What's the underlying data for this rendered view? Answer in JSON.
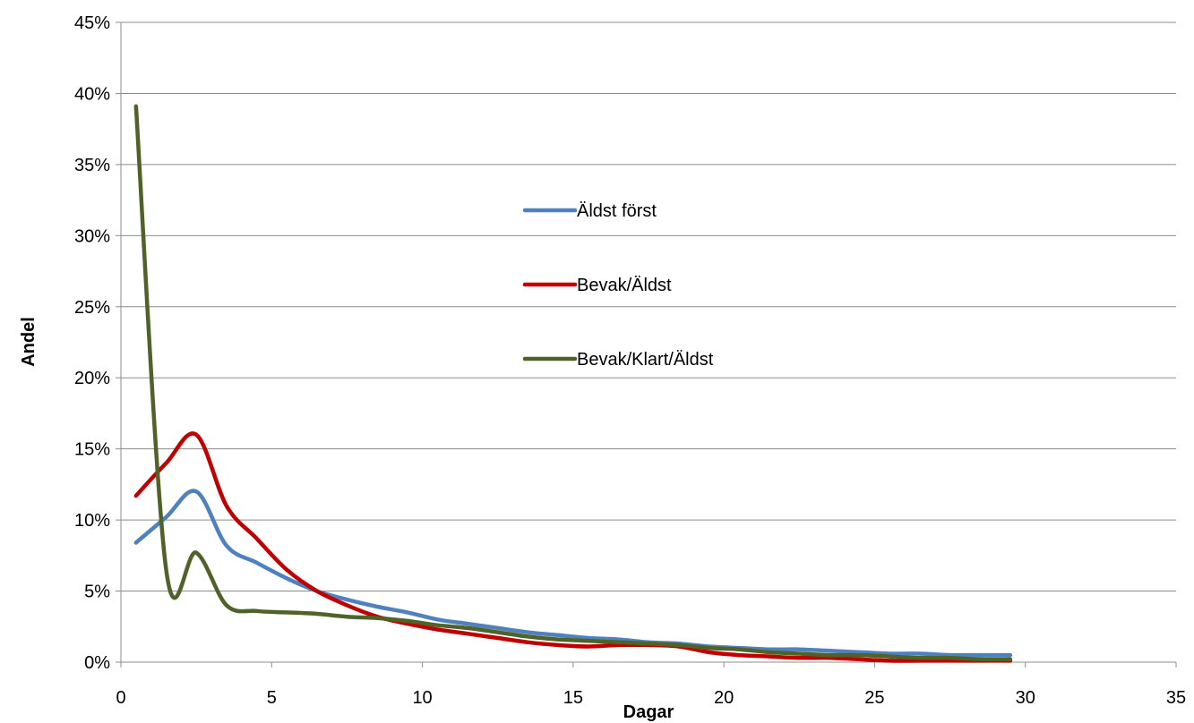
{
  "chart_data": {
    "type": "line",
    "title": "",
    "xlabel": "Dagar",
    "ylabel": "Andel",
    "xlim": [
      0,
      35
    ],
    "ylim": [
      0,
      45
    ],
    "x_ticks": [
      "0",
      "5",
      "10",
      "15",
      "20",
      "25",
      "30",
      "35"
    ],
    "y_ticks": [
      "0%",
      "5%",
      "10%",
      "15%",
      "20%",
      "25%",
      "30%",
      "35%",
      "40%",
      "45%"
    ],
    "grid": "horizontal",
    "legend_position": "center",
    "series": [
      {
        "name": "Äldst först",
        "color": "#4f81bd",
        "x": [
          0.5,
          1.5,
          2.5,
          3.5,
          4.5,
          5.5,
          6.5,
          7.5,
          8.5,
          9.5,
          10.5,
          11.5,
          12.5,
          13.5,
          14.5,
          15.5,
          16.5,
          17.5,
          18.5,
          19.5,
          20.5,
          21.5,
          22.5,
          23.5,
          24.5,
          25.5,
          26.5,
          27.5,
          28.5,
          29.5
        ],
        "values": [
          8.4,
          10.2,
          12.0,
          8.2,
          7.0,
          5.9,
          5.0,
          4.4,
          3.9,
          3.5,
          3.0,
          2.7,
          2.4,
          2.1,
          1.9,
          1.7,
          1.6,
          1.4,
          1.3,
          1.1,
          1.0,
          0.9,
          0.9,
          0.8,
          0.7,
          0.6,
          0.6,
          0.5,
          0.5,
          0.5
        ]
      },
      {
        "name": "Bevak/Äldst",
        "color": "#c00000",
        "x": [
          0.5,
          1.5,
          2.5,
          3.5,
          4.5,
          5.5,
          6.5,
          7.5,
          8.5,
          9.5,
          10.5,
          11.5,
          12.5,
          13.5,
          14.5,
          15.5,
          16.5,
          17.5,
          18.5,
          19.5,
          20.5,
          21.5,
          22.5,
          23.5,
          24.5,
          25.5,
          26.5,
          27.5,
          28.5,
          29.5
        ],
        "values": [
          11.7,
          14.0,
          16.0,
          11.0,
          8.7,
          6.5,
          5.0,
          4.0,
          3.2,
          2.7,
          2.3,
          2.0,
          1.7,
          1.4,
          1.2,
          1.1,
          1.2,
          1.2,
          1.1,
          0.7,
          0.5,
          0.4,
          0.3,
          0.3,
          0.2,
          0.1,
          0.1,
          0.1,
          0.1,
          0.1
        ]
      },
      {
        "name": "Bevak/Klart/Äldst",
        "color": "#4f6228",
        "x": [
          0.5,
          1.5,
          2.5,
          3.5,
          4.5,
          5.5,
          6.5,
          7.5,
          8.5,
          9.5,
          10.5,
          11.5,
          12.5,
          13.5,
          14.5,
          15.5,
          16.5,
          17.5,
          18.5,
          19.5,
          20.5,
          21.5,
          22.5,
          23.5,
          24.5,
          25.5,
          26.5,
          27.5,
          28.5,
          29.5
        ],
        "values": [
          39.1,
          6.5,
          7.7,
          4.0,
          3.6,
          3.5,
          3.4,
          3.2,
          3.1,
          2.9,
          2.6,
          2.4,
          2.1,
          1.8,
          1.6,
          1.5,
          1.4,
          1.3,
          1.2,
          1.0,
          0.9,
          0.7,
          0.6,
          0.5,
          0.5,
          0.4,
          0.3,
          0.3,
          0.2,
          0.2
        ]
      }
    ]
  }
}
